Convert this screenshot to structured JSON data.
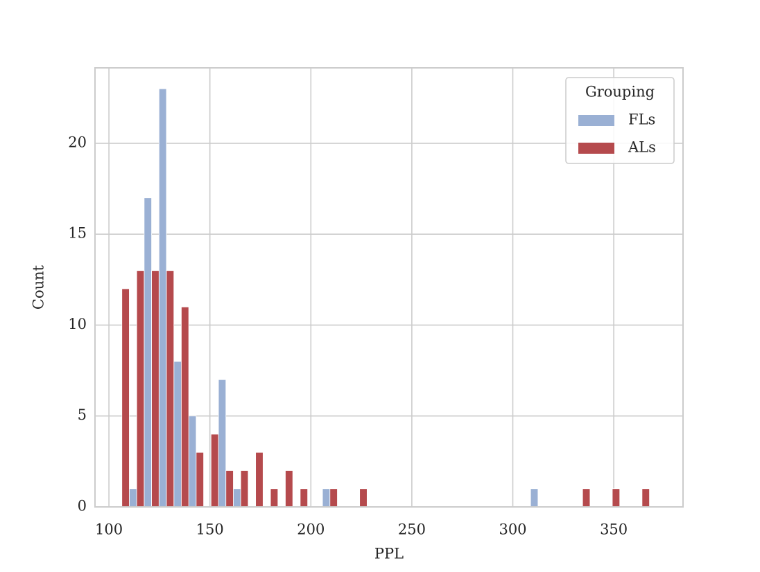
{
  "chart_data": {
    "type": "histogram",
    "x_label": "PPL",
    "y_label": "Count",
    "bins": [
      106.4,
      113.76,
      121.12,
      128.48,
      135.84,
      143.2,
      150.56,
      157.92,
      165.28,
      172.64,
      180,
      187.36,
      194.72,
      202.08,
      209.44,
      216.8,
      224.16,
      231.52,
      238.88,
      246.24,
      253.6,
      260.96,
      268.32,
      275.68,
      283.04,
      290.4,
      297.76,
      305.12,
      312.48,
      319.84,
      327.2,
      334.56,
      341.92,
      349.28,
      356.64,
      364,
      371.36
    ],
    "series": [
      {
        "name": "FLs",
        "color": "#9ab0d4",
        "values": [
          1,
          17,
          23,
          8,
          5,
          0,
          7,
          1,
          0,
          0,
          0,
          0,
          0,
          1,
          0,
          0,
          0,
          0,
          0,
          0,
          0,
          0,
          0,
          0,
          0,
          0,
          0,
          1,
          0,
          0,
          0,
          0,
          0,
          0,
          0,
          0
        ]
      },
      {
        "name": "ALs",
        "color": "#b54a4d",
        "values": [
          12,
          13,
          13,
          13,
          11,
          3,
          4,
          2,
          2,
          3,
          1,
          2,
          1,
          0,
          1,
          0,
          1,
          0,
          0,
          0,
          0,
          0,
          0,
          0,
          0,
          0,
          0,
          0,
          0,
          0,
          0,
          1,
          0,
          1,
          0,
          1
        ]
      }
    ],
    "legend_title": "Grouping",
    "legend": "upper right",
    "xlim": [
      93.1,
      384.3
    ],
    "xticks": [
      100,
      150,
      200,
      250,
      300,
      350
    ],
    "ylim": [
      0,
      24.15
    ],
    "yticks": [
      0,
      5,
      10,
      15,
      20
    ],
    "grid": true
  }
}
